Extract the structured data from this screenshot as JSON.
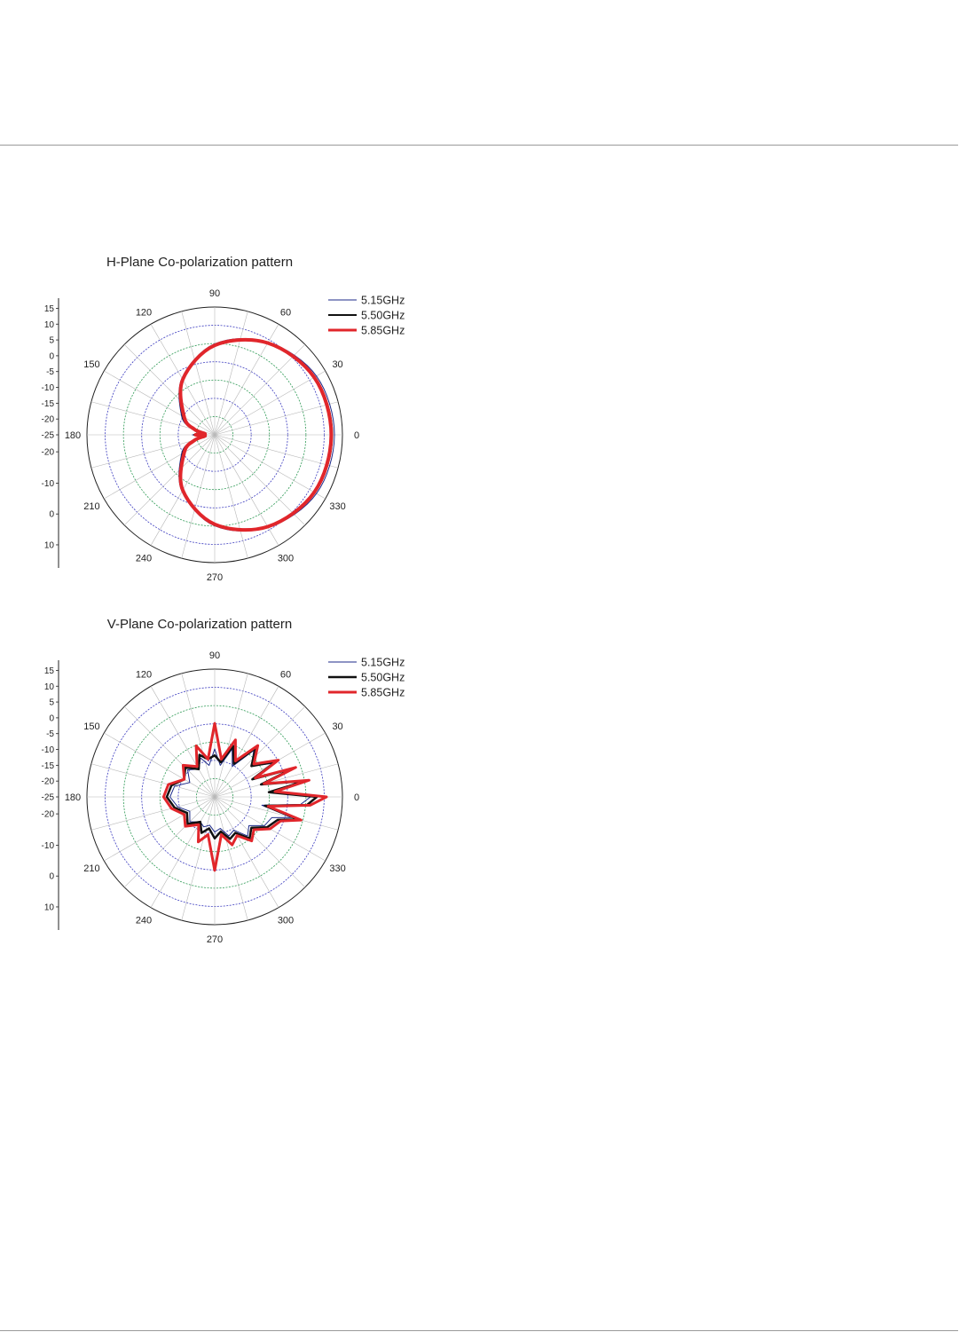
{
  "chart_data": [
    {
      "id": "h-plane",
      "type": "polar",
      "title": "H-Plane Co-polarization pattern",
      "angle_ticks": [
        "0",
        "30",
        "60",
        "90",
        "120",
        "150",
        "180",
        "210",
        "240",
        "270",
        "300",
        "330"
      ],
      "radial_tick_labels": [
        "15",
        "10",
        "5",
        "0",
        "-5",
        "-10",
        "-15",
        "-20",
        "-25",
        "-20",
        "-10",
        "0",
        "10"
      ],
      "radial_range_db": [
        -25,
        15
      ],
      "grid": true,
      "legend_position": "top-right",
      "series": [
        {
          "name": "5.15GHz",
          "color": "#1c2a8a",
          "stroke": 1,
          "angles_deg": [
            0,
            30,
            60,
            90,
            120,
            150,
            165,
            175,
            180,
            185,
            195,
            210,
            240,
            270,
            300,
            330
          ],
          "gain_db": [
            12.5,
            11.8,
            8.5,
            3.5,
            -4.5,
            -13.0,
            -17.5,
            -21.0,
            -18.0,
            -21.0,
            -17.5,
            -13.0,
            -4.5,
            3.5,
            8.5,
            11.8
          ]
        },
        {
          "name": "5.50GHz",
          "color": "#111111",
          "stroke": 2,
          "angles_deg": [
            0,
            30,
            60,
            90,
            120,
            150,
            165,
            175,
            180,
            185,
            195,
            210,
            240,
            270,
            300,
            330
          ],
          "gain_db": [
            11.8,
            11.2,
            8.0,
            3.2,
            -4.8,
            -13.5,
            -18.0,
            -21.5,
            -18.5,
            -21.5,
            -18.0,
            -13.5,
            -4.8,
            3.2,
            8.0,
            11.2
          ]
        },
        {
          "name": "5.85GHz",
          "color": "#e1262b",
          "stroke": 4,
          "angles_deg": [
            0,
            30,
            60,
            90,
            120,
            150,
            165,
            175,
            180,
            185,
            195,
            210,
            240,
            270,
            300,
            330
          ],
          "gain_db": [
            11.5,
            11.0,
            8.2,
            3.0,
            -5.0,
            -14.0,
            -18.5,
            -22.0,
            -19.0,
            -22.0,
            -18.5,
            -14.0,
            -5.0,
            3.0,
            8.2,
            11.0
          ]
        }
      ]
    },
    {
      "id": "v-plane",
      "type": "polar",
      "title": "V-Plane Co-polarization pattern",
      "angle_ticks": [
        "0",
        "30",
        "60",
        "90",
        "120",
        "150",
        "180",
        "210",
        "240",
        "270",
        "300",
        "330"
      ],
      "radial_tick_labels": [
        "15",
        "10",
        "5",
        "0",
        "-5",
        "-10",
        "-15",
        "-20",
        "-25",
        "-20",
        "-10",
        "0",
        "10"
      ],
      "radial_range_db": [
        -25,
        15
      ],
      "grid": true,
      "legend_position": "top-right",
      "series": [
        {
          "name": "5.15GHz",
          "color": "#1c2a8a",
          "stroke": 1,
          "angles_deg": [
            0,
            5,
            10,
            15,
            20,
            25,
            30,
            40,
            50,
            60,
            70,
            80,
            90,
            100,
            110,
            120,
            135,
            150,
            165,
            180,
            195,
            210,
            225,
            240,
            250,
            260,
            270,
            280,
            290,
            300,
            310,
            320,
            330,
            340,
            345,
            350,
            355
          ],
          "gain_db": [
            5,
            -8,
            3,
            -10,
            0,
            -12,
            -4,
            -10,
            -6,
            -14,
            -9,
            -15,
            -10,
            -15,
            -12,
            -15,
            -13,
            -16,
            -12,
            -11,
            -13,
            -16,
            -14,
            -16,
            -15,
            -16,
            -14,
            -15,
            -12,
            -13,
            -9,
            -11,
            -7,
            -6,
            0,
            -10,
            2
          ]
        },
        {
          "name": "5.50GHz",
          "color": "#111111",
          "stroke": 2.5,
          "angles_deg": [
            0,
            5,
            10,
            15,
            20,
            25,
            30,
            40,
            50,
            60,
            70,
            80,
            90,
            100,
            110,
            120,
            135,
            150,
            165,
            180,
            195,
            210,
            225,
            240,
            250,
            260,
            270,
            280,
            290,
            300,
            310,
            320,
            330,
            340,
            345,
            350,
            355
          ],
          "gain_db": [
            7,
            -8,
            4,
            -10,
            1,
            -12,
            -3,
            -10,
            -5,
            -13,
            -8,
            -14,
            -12,
            -13,
            -11,
            -15,
            -12,
            -14,
            -11,
            -10,
            -12,
            -15,
            -13,
            -16,
            -13,
            -15,
            -12,
            -14,
            -11,
            -12,
            -8,
            -10,
            -6,
            -4,
            2,
            -9,
            4
          ]
        },
        {
          "name": "5.85GHz",
          "color": "#e1262b",
          "stroke": 3,
          "angles_deg": [
            0,
            5,
            10,
            15,
            20,
            25,
            30,
            40,
            50,
            60,
            70,
            80,
            90,
            100,
            110,
            120,
            135,
            150,
            165,
            180,
            195,
            210,
            225,
            240,
            250,
            260,
            270,
            280,
            290,
            300,
            310,
            320,
            330,
            340,
            345,
            350,
            355
          ],
          "gain_db": [
            10,
            -6,
            5,
            -9,
            2,
            -11,
            -2,
            -9,
            -4,
            -12,
            -6,
            -13,
            -2,
            -13,
            -8,
            -14,
            -11,
            -14,
            -10,
            -9,
            -11,
            -14,
            -12,
            -15,
            -10,
            -13,
            -2,
            -13,
            -9,
            -11,
            -7,
            -9,
            -5,
            -3,
            3,
            -8,
            5
          ]
        }
      ]
    }
  ]
}
